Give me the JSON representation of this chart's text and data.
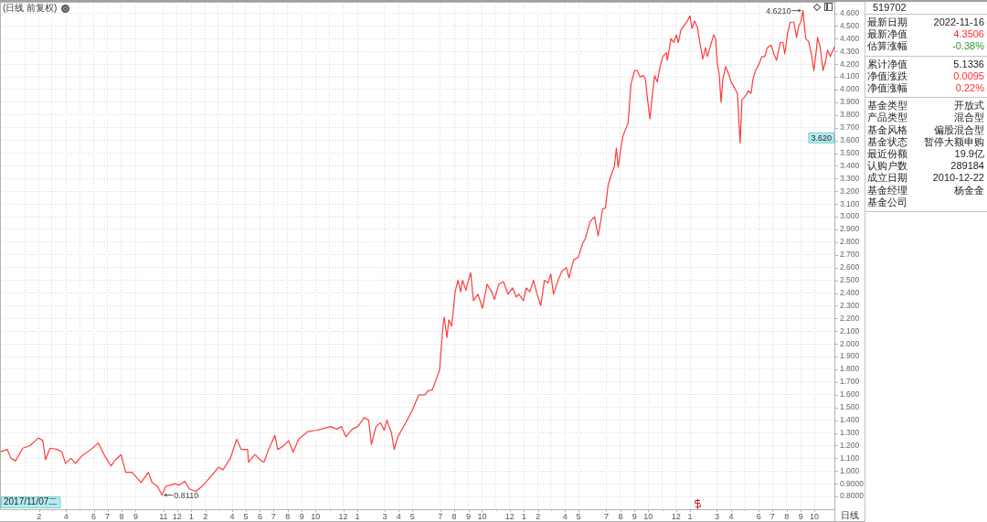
{
  "chart_data": [
    {
      "type": "line",
      "title": "(日线 前复权)",
      "x": [
        "2017-11-07",
        "2017-11-23",
        "2017-12-01",
        "2017-12-11",
        "2017-12-27",
        "2018-01-12",
        "2018-01-30",
        "2018-02-09",
        "2018-02-15",
        "2018-02-25",
        "2018-03-13",
        "2018-03-23",
        "2018-03-31",
        "2018-04-12",
        "2018-04-22",
        "2018-05-06",
        "2018-05-26",
        "2018-06-11",
        "2018-06-25",
        "2018-07-09",
        "2018-07-19",
        "2018-07-31",
        "2018-08-10",
        "2018-08-24",
        "2018-09-13",
        "2018-09-29",
        "2018-10-07",
        "2018-10-19",
        "2018-10-29",
        "2018-11-06",
        "2018-11-26",
        "2018-12-06",
        "2018-12-18",
        "2018-12-28",
        "2019-01-11",
        "2019-01-25",
        "2019-02-14",
        "2019-03-02",
        "2019-03-12",
        "2019-03-28",
        "2019-04-11",
        "2019-04-21",
        "2019-05-05",
        "2019-05-07",
        "2019-05-21",
        "2019-06-04",
        "2019-06-10",
        "2019-06-20",
        "2019-07-04",
        "2019-07-10",
        "2019-07-24",
        "2019-08-03",
        "2019-08-13",
        "2019-08-25",
        "2019-09-14",
        "2019-10-02",
        "2019-10-14",
        "2019-11-03",
        "2019-11-17",
        "2019-11-27",
        "2019-12-07",
        "2019-12-21",
        "2020-01-02",
        "2020-01-16",
        "2020-01-26",
        "2020-02-01",
        "2020-02-11",
        "2020-02-21",
        "2020-02-29",
        "2020-03-06",
        "2020-03-16",
        "2020-03-22",
        "2020-03-30",
        "2020-04-15",
        "2020-05-01",
        "2020-05-15",
        "2020-05-29",
        "2020-06-04",
        "2020-06-14",
        "2020-06-24",
        "2020-06-30",
        "2020-07-04",
        "2020-07-08",
        "2020-07-10",
        "2020-07-16",
        "2020-07-20",
        "2020-07-26",
        "2020-07-30",
        "2020-08-03",
        "2020-08-09",
        "2020-08-15",
        "2020-08-19",
        "2020-08-27",
        "2020-08-29",
        "2020-09-06",
        "2020-09-12",
        "2020-09-22",
        "2020-10-02",
        "2020-10-12",
        "2020-10-22",
        "2020-10-28",
        "2020-11-07",
        "2020-11-17",
        "2020-11-27",
        "2020-12-07",
        "2020-12-15",
        "2020-12-21",
        "2020-12-31",
        "2021-01-06",
        "2021-01-14",
        "2021-01-22",
        "2021-01-30",
        "2021-02-07",
        "2021-02-15",
        "2021-02-23",
        "2021-03-01",
        "2021-03-07",
        "2021-03-17",
        "2021-03-25",
        "2021-04-04",
        "2021-04-10",
        "2021-04-20",
        "2021-04-30",
        "2021-05-10",
        "2021-05-16",
        "2021-05-26",
        "2021-06-05",
        "2021-06-13",
        "2021-06-23",
        "2021-06-29",
        "2021-07-05",
        "2021-07-13",
        "2021-07-19",
        "2021-07-23",
        "2021-07-27",
        "2021-08-02",
        "2021-08-06",
        "2021-08-18",
        "2021-08-24",
        "2021-09-01",
        "2021-09-07",
        "2021-09-13",
        "2021-09-21",
        "2021-09-25",
        "2021-09-29",
        "2021-10-03",
        "2021-10-05",
        "2021-10-09",
        "2021-10-15",
        "2021-10-21",
        "2021-10-27",
        "2021-11-02",
        "2021-11-10",
        "2021-11-12",
        "2021-11-20",
        "2021-11-26",
        "2021-12-02",
        "2021-12-06",
        "2021-12-12",
        "2021-12-20",
        "2021-12-26",
        "2022-01-01",
        "2022-01-05",
        "2022-01-11",
        "2022-01-17",
        "2022-01-21",
        "2022-01-29",
        "2022-02-04",
        "2022-02-08",
        "2022-02-16",
        "2022-02-22",
        "2022-02-26",
        "2022-03-02",
        "2022-03-06",
        "2022-03-10",
        "2022-03-14",
        "2022-03-20",
        "2022-03-26",
        "2022-04-01",
        "2022-04-09",
        "2022-04-15",
        "2022-04-21",
        "2022-04-25",
        "2022-05-01",
        "2022-05-09",
        "2022-05-15",
        "2022-05-19",
        "2022-05-25",
        "2022-05-31",
        "2022-06-08",
        "2022-06-14",
        "2022-06-20",
        "2022-06-28",
        "2022-07-04",
        "2022-07-10",
        "2022-07-18",
        "2022-07-24",
        "2022-07-28",
        "2022-08-03",
        "2022-08-09",
        "2022-08-17",
        "2022-08-23",
        "2022-08-27",
        "2022-09-02",
        "2022-09-06",
        "2022-09-12",
        "2022-09-18",
        "2022-09-24",
        "2022-09-30",
        "2022-10-06",
        "2022-10-08",
        "2022-10-14",
        "2022-10-20",
        "2022-10-26",
        "2022-10-30",
        "2022-11-05",
        "2022-11-16"
      ],
      "values": [
        1.15,
        1.17,
        1.1,
        1.08,
        1.18,
        1.2,
        1.26,
        1.24,
        1.09,
        1.18,
        1.17,
        1.15,
        1.06,
        1.1,
        1.06,
        1.12,
        1.17,
        1.22,
        1.12,
        1.04,
        1.09,
        1.13,
        0.99,
        0.99,
        0.91,
        0.99,
        0.91,
        0.88,
        0.811,
        0.88,
        0.9,
        0.89,
        0.92,
        0.86,
        0.84,
        0.88,
        0.96,
        1.03,
        1.01,
        1.1,
        1.25,
        1.17,
        1.17,
        1.07,
        1.13,
        1.08,
        1.07,
        1.17,
        1.28,
        1.17,
        1.2,
        1.24,
        1.15,
        1.25,
        1.31,
        1.32,
        1.33,
        1.35,
        1.33,
        1.35,
        1.27,
        1.33,
        1.35,
        1.42,
        1.4,
        1.21,
        1.35,
        1.38,
        1.32,
        1.4,
        1.3,
        1.17,
        1.27,
        1.37,
        1.48,
        1.6,
        1.6,
        1.63,
        1.64,
        1.74,
        1.8,
        2.0,
        2.17,
        2.21,
        2.05,
        2.19,
        2.14,
        2.27,
        2.41,
        2.5,
        2.41,
        2.5,
        2.42,
        2.46,
        2.56,
        2.34,
        2.39,
        2.28,
        2.47,
        2.41,
        2.35,
        2.47,
        2.49,
        2.39,
        2.44,
        2.37,
        2.39,
        2.34,
        2.44,
        2.41,
        2.5,
        2.39,
        2.3,
        2.5,
        2.48,
        2.55,
        2.39,
        2.5,
        2.57,
        2.6,
        2.52,
        2.66,
        2.68,
        2.79,
        2.83,
        2.96,
        3.0,
        2.85,
        3.06,
        3.07,
        3.25,
        3.34,
        3.4,
        3.54,
        3.39,
        3.54,
        3.63,
        3.74,
        4.04,
        4.15,
        4.15,
        4.1,
        4.11,
        4.08,
        3.94,
        3.82,
        3.77,
        3.92,
        4.11,
        4.06,
        4.18,
        4.26,
        4.29,
        4.23,
        4.4,
        4.37,
        4.43,
        4.37,
        4.47,
        4.51,
        4.54,
        4.58,
        4.48,
        4.54,
        4.49,
        4.4,
        4.24,
        4.33,
        4.26,
        4.36,
        4.43,
        4.4,
        4.2,
        4.12,
        3.9,
        4.08,
        4.18,
        4.13,
        4.06,
        4.01,
        3.97,
        3.58,
        3.92,
        3.94,
        3.99,
        3.97,
        4.08,
        4.15,
        4.19,
        4.26,
        4.26,
        4.33,
        4.35,
        4.28,
        4.23,
        4.37,
        4.37,
        4.28,
        4.44,
        4.53,
        4.53,
        4.41,
        4.49,
        4.54,
        4.621,
        4.4,
        4.38,
        4.29,
        4.15,
        4.33,
        4.41,
        4.33,
        4.15,
        4.23,
        4.31,
        4.26,
        4.35
      ],
      "color": "#ff3b3b",
      "xlim": [
        "2017-11-07",
        "2022-11-16"
      ],
      "xticks": [
        {
          "value": "2018-01",
          "label": null
        },
        {
          "value": "2018-02",
          "label": "2"
        },
        {
          "value": "2018-03",
          "label": null
        },
        {
          "value": "2018-04",
          "label": "4"
        },
        {
          "value": "2018-05",
          "label": null
        },
        {
          "value": "2018-06",
          "label": "6"
        },
        {
          "value": "2018-07",
          "label": "7"
        },
        {
          "value": "2018-08",
          "label": "8"
        },
        {
          "value": "2018-09",
          "label": "9"
        },
        {
          "value": "2018-11",
          "label": "11"
        },
        {
          "value": "2018-12",
          "label": "12"
        },
        {
          "value": "2019-01",
          "label": "1"
        },
        {
          "value": "2019-02",
          "label": "2"
        },
        {
          "value": "2019-03",
          "label": null
        },
        {
          "value": "2019-04",
          "label": "4"
        },
        {
          "value": "2019-05",
          "label": "5"
        },
        {
          "value": "2019-06",
          "label": "6"
        },
        {
          "value": "2019-07",
          "label": "7"
        },
        {
          "value": "2019-08",
          "label": "8"
        },
        {
          "value": "2019-09",
          "label": "9"
        },
        {
          "value": "2019-10",
          "label": "10"
        },
        {
          "value": "2019-11",
          "label": null
        },
        {
          "value": "2019-12",
          "label": "12"
        },
        {
          "value": "2020-01",
          "label": "1"
        },
        {
          "value": "2020-03",
          "label": "3"
        },
        {
          "value": "2020-04",
          "label": "4"
        },
        {
          "value": "2020-05",
          "label": "5"
        },
        {
          "value": "2020-07",
          "label": "7"
        },
        {
          "value": "2020-08",
          "label": "8"
        },
        {
          "value": "2020-09",
          "label": "9"
        },
        {
          "value": "2020-10",
          "label": "10"
        },
        {
          "value": "2020-11",
          "label": null
        },
        {
          "value": "2020-12",
          "label": "12"
        },
        {
          "value": "2021-01",
          "label": "1"
        },
        {
          "value": "2021-02",
          "label": "2"
        },
        {
          "value": "2021-03",
          "label": null
        },
        {
          "value": "2021-04",
          "label": "4"
        },
        {
          "value": "2021-05",
          "label": "5"
        },
        {
          "value": "2021-07",
          "label": "7"
        },
        {
          "value": "2021-08",
          "label": "8"
        },
        {
          "value": "2021-09",
          "label": "9"
        },
        {
          "value": "2021-10",
          "label": "10"
        },
        {
          "value": "2021-11",
          "label": null
        },
        {
          "value": "2021-12",
          "label": "12"
        },
        {
          "value": "2022-01",
          "label": "1"
        },
        {
          "value": "2022-03",
          "label": "3"
        },
        {
          "value": "2022-04",
          "label": "4"
        },
        {
          "value": "2022-05",
          "label": null
        },
        {
          "value": "2022-06",
          "label": "6"
        },
        {
          "value": "2022-07",
          "label": "7"
        },
        {
          "value": "2022-08",
          "label": "8"
        },
        {
          "value": "2022-09",
          "label": "9"
        },
        {
          "value": "2022-10",
          "label": "10"
        }
      ],
      "ylim": [
        0.7,
        4.69
      ],
      "yticks": [
        {
          "value": 0.8,
          "label": "0.8000"
        },
        {
          "value": 0.9,
          "label": "0.9000"
        },
        {
          "value": 1.0,
          "label": "1.000"
        },
        {
          "value": 1.1,
          "label": "1.100"
        },
        {
          "value": 1.2,
          "label": "1.200"
        },
        {
          "value": 1.3,
          "label": "1.300"
        },
        {
          "value": 1.4,
          "label": "1.400"
        },
        {
          "value": 1.5,
          "label": "1.500"
        },
        {
          "value": 1.6,
          "label": "1.600"
        },
        {
          "value": 1.7,
          "label": "1.700"
        },
        {
          "value": 1.8,
          "label": "1.800"
        },
        {
          "value": 1.9,
          "label": "1.900"
        },
        {
          "value": 2.0,
          "label": "2.000"
        },
        {
          "value": 2.1,
          "label": "2.100"
        },
        {
          "value": 2.2,
          "label": "2.200"
        },
        {
          "value": 2.3,
          "label": "2.300"
        },
        {
          "value": 2.4,
          "label": "2.400"
        },
        {
          "value": 2.5,
          "label": "2.500"
        },
        {
          "value": 2.6,
          "label": "2.600"
        },
        {
          "value": 2.7,
          "label": "2.700"
        },
        {
          "value": 2.8,
          "label": "2.800"
        },
        {
          "value": 2.9,
          "label": "2.900"
        },
        {
          "value": 3.0,
          "label": "3.000"
        },
        {
          "value": 3.1,
          "label": "3.100"
        },
        {
          "value": 3.2,
          "label": "3.200"
        },
        {
          "value": 3.3,
          "label": "3.300"
        },
        {
          "value": 3.4,
          "label": "3.400"
        },
        {
          "value": 3.5,
          "label": "3.500"
        },
        {
          "value": 3.6,
          "label": "3.600"
        },
        {
          "value": 3.7,
          "label": "3.700"
        },
        {
          "value": 3.8,
          "label": "3.800"
        },
        {
          "value": 3.9,
          "label": "3.900"
        },
        {
          "value": 4.0,
          "label": "4.000"
        },
        {
          "value": 4.1,
          "label": "4.100"
        },
        {
          "value": 4.2,
          "label": "4.200"
        },
        {
          "value": 4.3,
          "label": "4.300"
        },
        {
          "value": 4.4,
          "label": "4.400"
        },
        {
          "value": 4.5,
          "label": "4.500"
        },
        {
          "value": 4.6,
          "label": "4.600"
        }
      ],
      "grid": true,
      "annotations": [
        {
          "text": "4.6210",
          "x": "2022-09-06",
          "y": 4.621
        },
        {
          "text": "0.8110",
          "x": "2018-10-29",
          "y": 0.811
        },
        {
          "text": "3.620",
          "y": 3.62
        },
        "2017/11/07二",
        "日线"
      ]
    },
    {
      "type": "other",
      "title": "519702",
      "annotations": [
        "最新日期",
        "2022-11-16",
        "最新净值",
        "4.3506",
        "估算涨幅",
        "-0.38%"
      ],
      "colors": [
        "#222222",
        "#222222",
        "#222222",
        "#ff2d2d",
        "#222222",
        "#2b9b2b"
      ]
    },
    {
      "type": "other",
      "annotations": [
        "累计净值",
        "5.1336",
        "净值涨跌",
        "0.0095",
        "净值涨幅",
        "0.22%"
      ],
      "colors": [
        "#222222",
        "#222222",
        "#222222",
        "#ff2d2d",
        "#222222",
        "#ff2d2d"
      ]
    },
    {
      "type": "other",
      "annotations": [
        "基金类型",
        "开放式",
        "产品类型",
        "混合型",
        "基金风格",
        "偏股混合型",
        "基金状态",
        "暂停大额申购",
        "最近份额",
        "19.9亿",
        "认购户数",
        "289184",
        "成立日期",
        "2010-12-22",
        "基金经理",
        "杨金金",
        "基金公司"
      ]
    }
  ]
}
